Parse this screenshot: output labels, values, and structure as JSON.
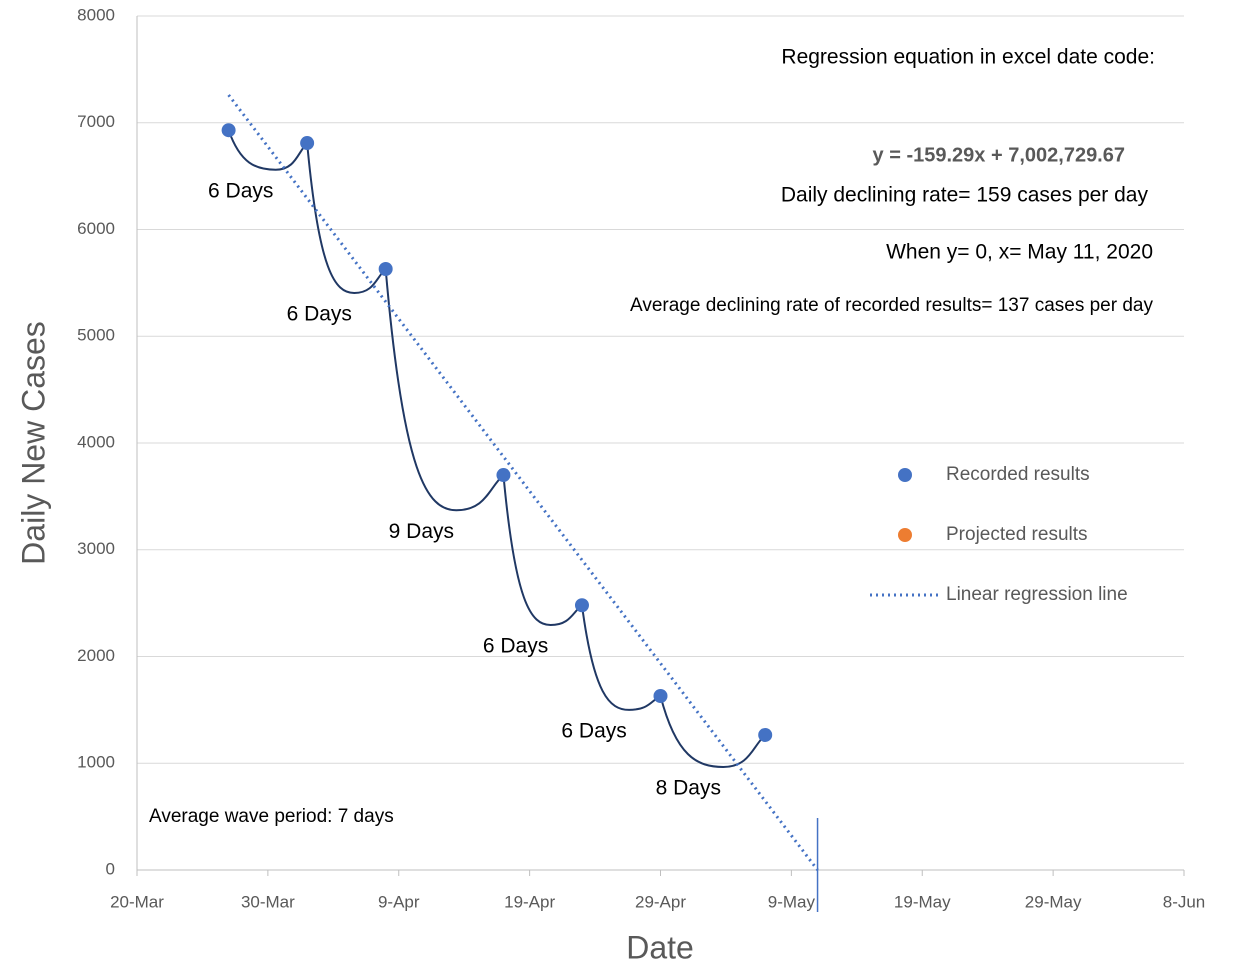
{
  "chart_data": {
    "type": "scatter",
    "x_label": "Date",
    "y_label": "Daily New Cases",
    "xlim": [
      43910,
      43990
    ],
    "xticks": [
      {
        "value": 43910,
        "label": "20-Mar"
      },
      {
        "value": 43920,
        "label": "30-Mar"
      },
      {
        "value": 43930,
        "label": "9-Apr"
      },
      {
        "value": 43940,
        "label": "19-Apr"
      },
      {
        "value": 43950,
        "label": "29-Apr"
      },
      {
        "value": 43960,
        "label": "9-May"
      },
      {
        "value": 43970,
        "label": "19-May"
      },
      {
        "value": 43980,
        "label": "29-May"
      },
      {
        "value": 43990,
        "label": "8-Jun"
      }
    ],
    "ylim": [
      0,
      8000
    ],
    "yticks": [
      0,
      1000,
      2000,
      3000,
      4000,
      5000,
      6000,
      7000,
      8000
    ],
    "grid": true,
    "series": [
      {
        "name": "Recorded results",
        "color": "#4472c4",
        "x": [
          43917,
          43923,
          43929,
          43938,
          43944,
          43950,
          43958
        ],
        "values": [
          6930,
          6810,
          5630,
          3700,
          2480,
          1630,
          1265
        ]
      },
      {
        "name": "Projected results",
        "color": "#ed7d31",
        "x": [],
        "values": []
      },
      {
        "name": "Linear regression line",
        "color": "#4472c4",
        "style": "dotted",
        "x": [
          43917,
          43962
        ],
        "values": [
          7260,
          0
        ]
      }
    ],
    "waves": [
      {
        "label": "6 Days",
        "min": 6560
      },
      {
        "label": "6 Days",
        "min": 5405
      },
      {
        "label": "9 Days",
        "min": 3370
      },
      {
        "label": "6 Days",
        "min": 2295
      },
      {
        "label": "6 Days",
        "min": 1500
      },
      {
        "label": "8 Days",
        "min": 965
      }
    ],
    "wave_color": "#203864",
    "vertical_marker": 43962,
    "annotations": [
      "Regression equation in excel date code:",
      "y = -159.29x + 7,002,729.67",
      "Daily declining rate= 159 cases per day",
      "When y= 0, x= May 11, 2020",
      "Average declining rate of recorded results= 137 cases per day",
      "Average wave period: 7 days"
    ]
  }
}
